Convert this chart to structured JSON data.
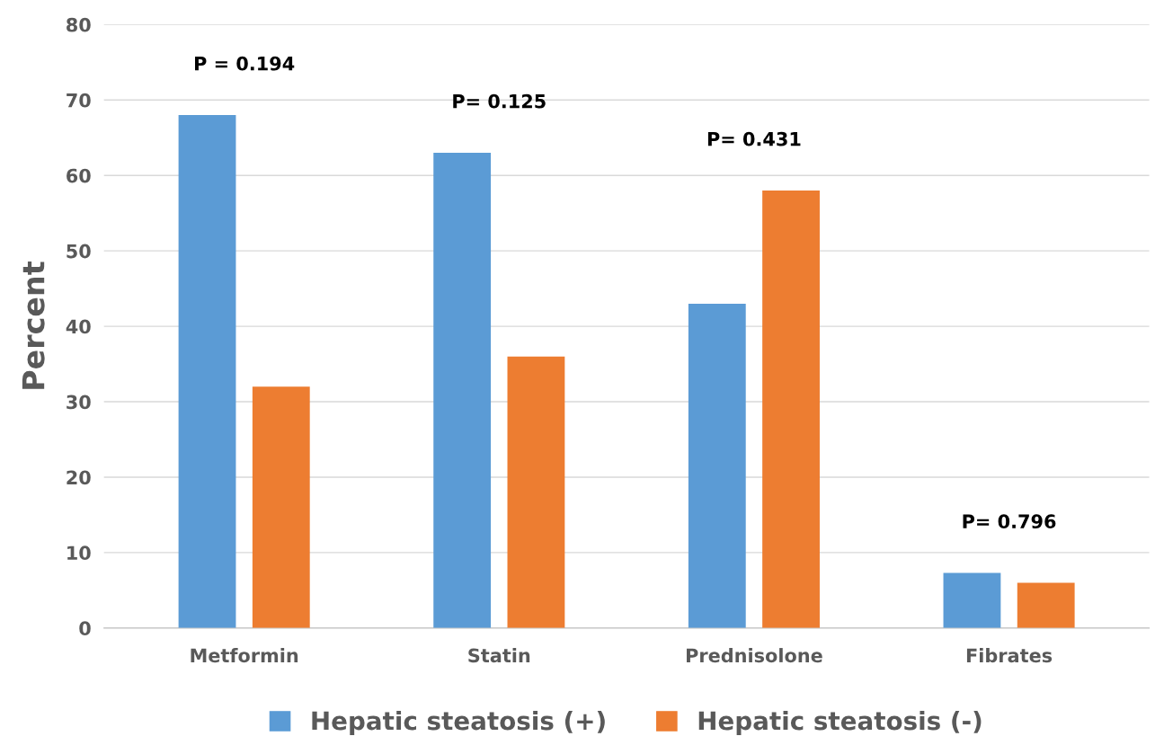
{
  "chart_data": {
    "type": "bar",
    "ylabel": "Percent",
    "categories": [
      "Metformin",
      "Statin",
      "Prednisolone",
      "Fibrates"
    ],
    "series": [
      {
        "name": "Hepatic steatosis (+)",
        "color": "#5b9bd5",
        "values": [
          68,
          63,
          43,
          7.3
        ]
      },
      {
        "name": "Hepatic steatosis (-)",
        "color": "#ed7d31",
        "values": [
          32,
          36,
          58,
          6.0
        ]
      }
    ],
    "ylim": [
      0,
      80
    ],
    "yticks": [
      0,
      10,
      20,
      30,
      40,
      50,
      60,
      70,
      80
    ],
    "grid": "y",
    "legend": "bottom",
    "annotations": [
      "P = 0.194",
      "P= 0.125",
      "P= 0.431",
      "P= 0.796"
    ]
  }
}
